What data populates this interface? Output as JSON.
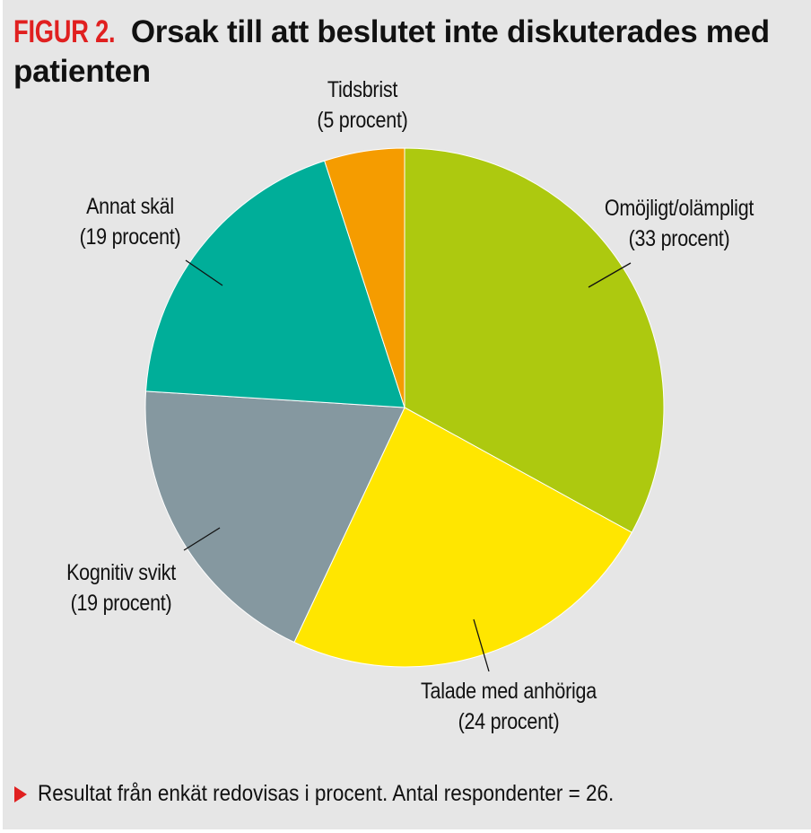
{
  "chart_data": {
    "type": "pie",
    "title_prefix": "FIGUR 2.",
    "title": "Orsak till att beslutet inte diskuterades med patienten",
    "slices": [
      {
        "label": "Omöjligt/olämpligt",
        "value": 33,
        "value_label": "(33 procent)",
        "color": "#adc90f"
      },
      {
        "label": "Talade med anhöriga",
        "value": 24,
        "value_label": "(24 procent)",
        "color": "#ffe600"
      },
      {
        "label": "Kognitiv svikt",
        "value": 19,
        "value_label": "(19 procent)",
        "color": "#8598a0"
      },
      {
        "label": "Annat skäl",
        "value": 19,
        "value_label": "(19 procent)",
        "color": "#00ae99"
      },
      {
        "label": "Tidsbrist",
        "value": 5,
        "value_label": "(5 procent)",
        "color": "#f59c00"
      }
    ],
    "start": "top",
    "direction": "clockwise",
    "footnote": "Resultat från enkät redovisas i procent. Antal respondenter = 26."
  }
}
